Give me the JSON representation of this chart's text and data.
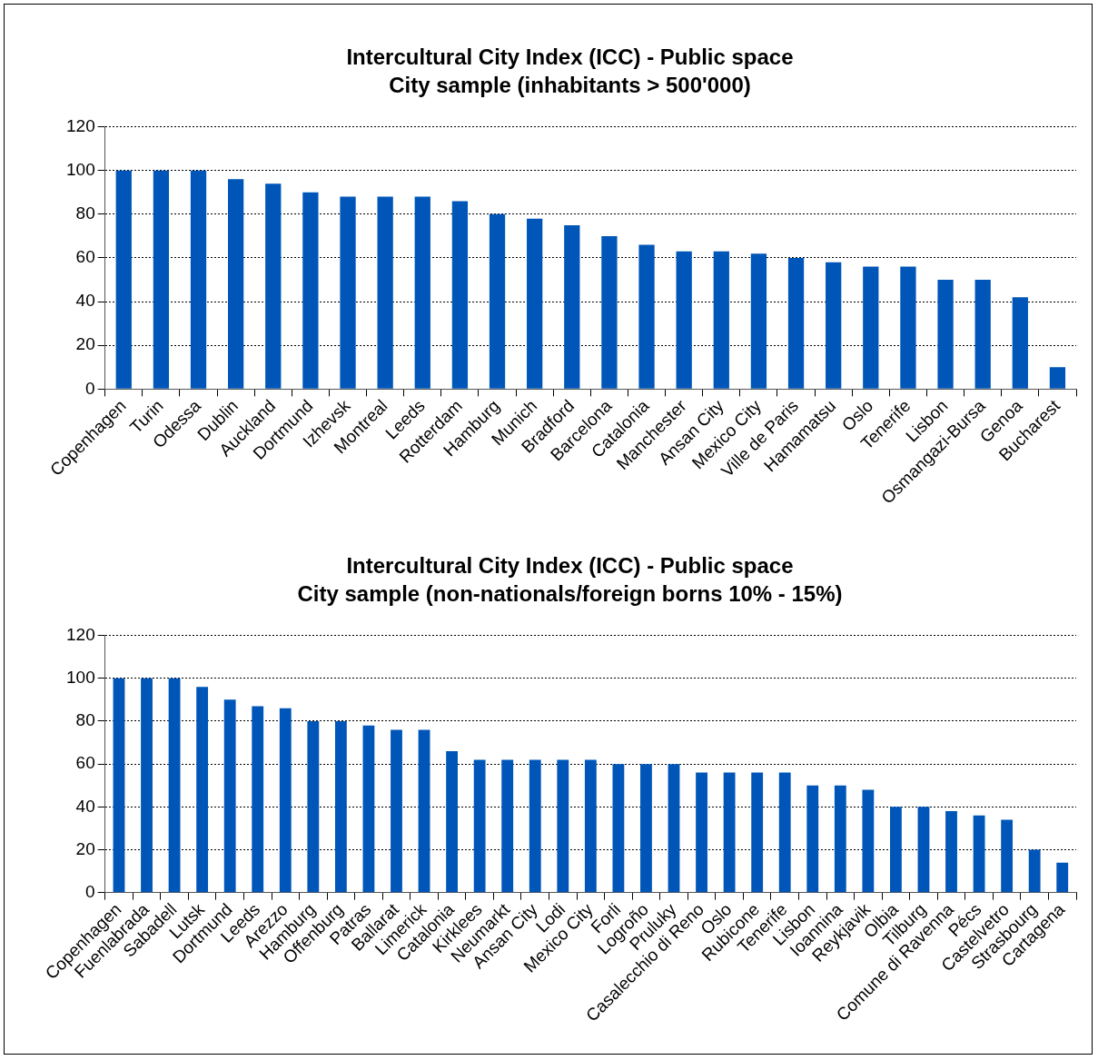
{
  "chart_data": [
    {
      "type": "bar",
      "title": "Intercultural City Index (ICC) - Public space",
      "subtitle": "City sample (inhabitants > 500'000)",
      "categories": [
        "Copenhagen",
        "Turin",
        "Odessa",
        "Dublin",
        "Auckland",
        "Dortmund",
        "Izhevsk",
        "Montreal",
        "Leeds",
        "Rotterdam",
        "Hamburg",
        "Munich",
        "Bradford",
        "Barcelona",
        "Catalonia",
        "Manchester",
        "Ansan City",
        "Mexico City",
        "Ville de Paris",
        "Hamamatsu",
        "Oslo",
        "Tenerife",
        "Lisbon",
        "Osmangazi-Bursa",
        "Genoa",
        "Bucharest"
      ],
      "values": [
        100,
        100,
        100,
        96,
        94,
        90,
        88,
        88,
        88,
        86,
        80,
        78,
        75,
        70,
        66,
        63,
        63,
        62,
        60,
        58,
        56,
        56,
        50,
        50,
        42,
        10
      ],
      "color": "#0056b8",
      "ylim": [
        0,
        120
      ],
      "yticks": [
        0,
        20,
        40,
        60,
        80,
        100,
        120
      ],
      "grid": "y",
      "legend": false
    },
    {
      "type": "bar",
      "title": "Intercultural City Index (ICC) - Public space",
      "subtitle": "City sample (non-nationals/foreign borns 10% - 15%)",
      "categories": [
        "Copenhagen",
        "Fuenlabrada",
        "Sabadell",
        "Lutsk",
        "Dortmund",
        "Leeds",
        "Arezzo",
        "Hamburg",
        "Offenburg",
        "Patras",
        "Ballarat",
        "Limerick",
        "Catalonia",
        "Kirklees",
        "Neumarkt",
        "Ansan City",
        "Lodi",
        "Mexico City",
        "Forli",
        "Logroño",
        "Pruluky",
        "Casalecchio di Reno",
        "Oslo",
        "Rubicone",
        "Tenerife",
        "Lisbon",
        "Ioannina",
        "Reykjavik",
        "Olbia",
        "Tilburg",
        "Comune di Ravenna",
        "Pécs",
        "Castelvetro",
        "Strasbourg",
        "Cartagena"
      ],
      "values": [
        100,
        100,
        100,
        96,
        90,
        87,
        86,
        80,
        80,
        78,
        76,
        76,
        66,
        62,
        62,
        62,
        62,
        62,
        60,
        60,
        60,
        56,
        56,
        56,
        56,
        50,
        50,
        48,
        40,
        40,
        38,
        36,
        34,
        20,
        14
      ],
      "color": "#0056b8",
      "ylim": [
        0,
        120
      ],
      "yticks": [
        0,
        20,
        40,
        60,
        80,
        100,
        120
      ],
      "grid": "y",
      "legend": false
    }
  ]
}
